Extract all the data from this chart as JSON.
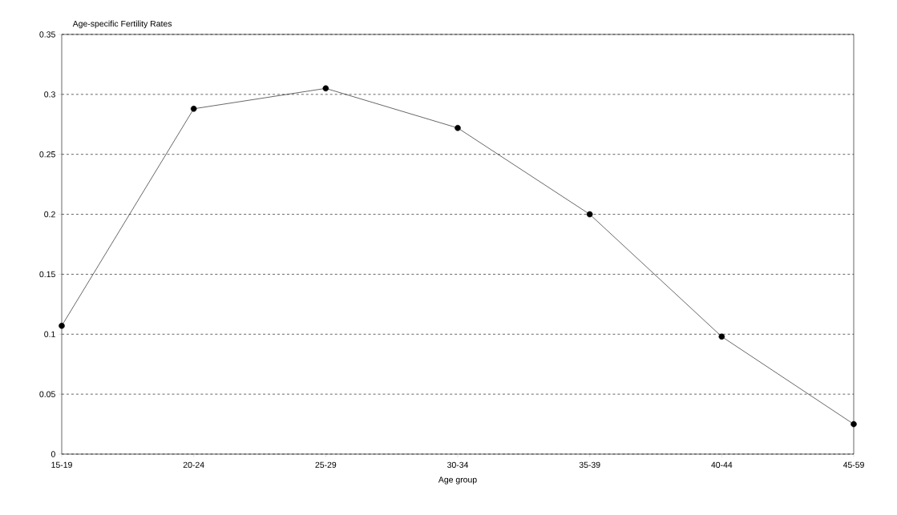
{
  "chart_data": {
    "type": "line",
    "ylabel": "Age-specific Fertility Rates",
    "xlabel": "Age group",
    "categories": [
      "15-19",
      "20-24",
      "25-29",
      "30-34",
      "35-39",
      "40-44",
      "45-59"
    ],
    "values": [
      0.107,
      0.288,
      0.305,
      0.272,
      0.2,
      0.098,
      0.025
    ],
    "color": "#000000",
    "ylim": [
      0,
      0.35
    ],
    "yticks": [
      0,
      0.05,
      0.1,
      0.15,
      0.2,
      0.25,
      0.3,
      0.35
    ],
    "grid": "y",
    "marker": "circle",
    "line_style": "solid"
  }
}
